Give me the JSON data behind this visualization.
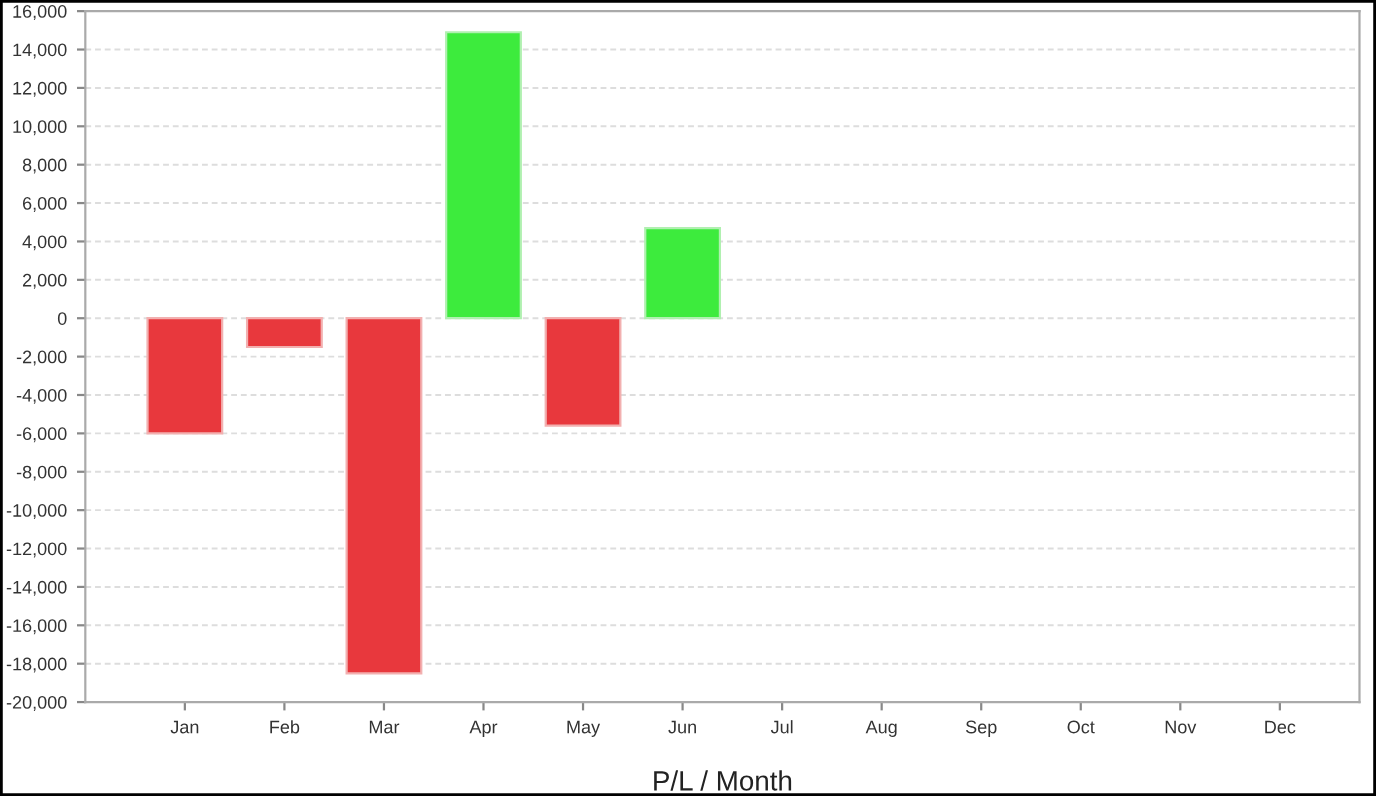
{
  "chart_data": {
    "type": "bar",
    "xlabel": "P/L / Month",
    "categories": [
      "Jan",
      "Feb",
      "Mar",
      "Apr",
      "May",
      "Jun",
      "Jul",
      "Aug",
      "Sep",
      "Oct",
      "Nov",
      "Dec"
    ],
    "values": [
      -6000,
      -1500,
      -18500,
      14900,
      -5600,
      4700,
      null,
      null,
      null,
      null,
      null,
      null
    ],
    "colors": [
      "#e8383d",
      "#e8383d",
      "#e8383d",
      "#3deb3d",
      "#e8383d",
      "#3deb3d",
      "#e8383d",
      "#e8383d",
      "#e8383d",
      "#e8383d",
      "#e8383d",
      "#e8383d"
    ],
    "ylim": [
      -20000,
      16000
    ],
    "yticks": [
      {
        "value": -20000,
        "label": "-20,000"
      },
      {
        "value": -18000,
        "label": "-18,000"
      },
      {
        "value": -16000,
        "label": "-16,000"
      },
      {
        "value": -14000,
        "label": "-14,000"
      },
      {
        "value": -12000,
        "label": "-12,000"
      },
      {
        "value": -10000,
        "label": "-10,000"
      },
      {
        "value": -8000,
        "label": "-8,000"
      },
      {
        "value": -6000,
        "label": "-6,000"
      },
      {
        "value": -4000,
        "label": "-4,000"
      },
      {
        "value": -2000,
        "label": "-2,000"
      },
      0,
      {
        "value": 2000,
        "label": "2,000"
      },
      {
        "value": 4000,
        "label": "4,000"
      },
      {
        "value": 6000,
        "label": "6,000"
      },
      {
        "value": 8000,
        "label": "8,000"
      },
      {
        "value": 10000,
        "label": "10,000"
      },
      {
        "value": 12000,
        "label": "12,000"
      },
      {
        "value": 14000,
        "label": "14,000"
      },
      {
        "value": 16000,
        "label": "16,000"
      }
    ],
    "grid": "y"
  }
}
